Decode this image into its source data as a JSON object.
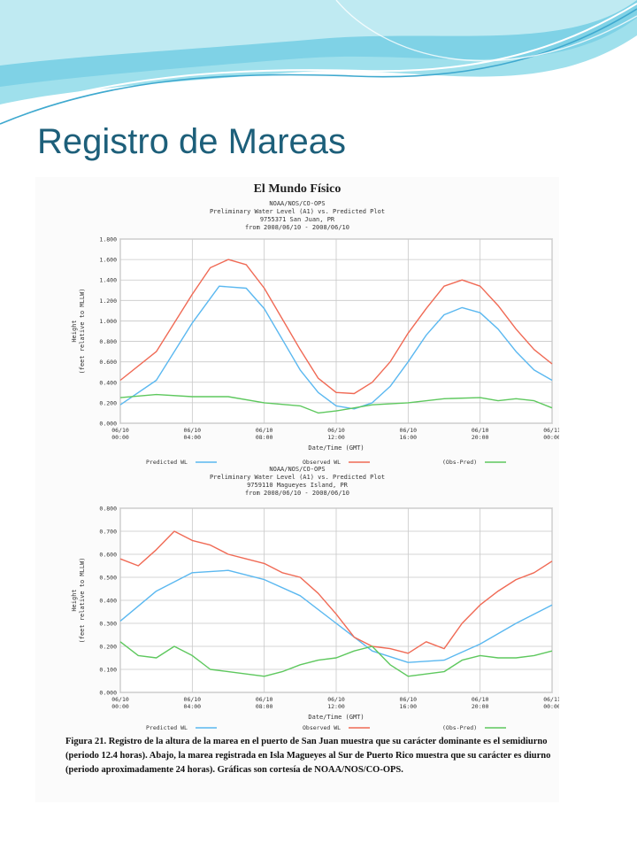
{
  "slide": {
    "title": "Registro de Mareas",
    "figure_heading": "El Mundo Físico",
    "caption": "Figura 21. Registro de la altura de la marea en el puerto de San Juan muestra que su carácter dominante es el semidiurno (periodo 12.4 horas). Abajo, la marea registrada en Isla Magueyes al Sur de Puerto Rico muestra que su carácter es diurno (periodo aproximadamente 24 horas). Gráficas son cortesía de NOAA/NOS/CO-OPS."
  },
  "colors": {
    "title": "#1d5f7a",
    "wave_light": "#9fe0ec",
    "wave_dark": "#3fa9cf",
    "predicted": "#5bb8f0",
    "observed": "#f06a55",
    "diff": "#5ec85e",
    "grid": "#c8c8c8"
  },
  "chart_data": [
    {
      "type": "line",
      "title_lines": [
        "NOAA/NOS/CO-OPS",
        "Preliminary  Water Level (A1) vs. Predicted Plot",
        "9755371 San Juan, PR",
        "from 2008/06/10 - 2008/06/10"
      ],
      "xlabel": "Date/Time (GMT)",
      "ylabel": [
        "Height",
        "(feet relative to MLLW)"
      ],
      "ylim": [
        0,
        1.8
      ],
      "yticks": [
        "0.000",
        "0.200",
        "0.400",
        "0.600",
        "0.800",
        "1.000",
        "1.200",
        "1.400",
        "1.600",
        "1.800"
      ],
      "xlim": [
        0,
        24
      ],
      "xticks": [
        {
          "t": 0,
          "l1": "06/10",
          "l2": "00:00"
        },
        {
          "t": 4,
          "l1": "06/10",
          "l2": "04:00"
        },
        {
          "t": 8,
          "l1": "06/10",
          "l2": "08:00"
        },
        {
          "t": 12,
          "l1": "06/10",
          "l2": "12:00"
        },
        {
          "t": 16,
          "l1": "06/10",
          "l2": "16:00"
        },
        {
          "t": 20,
          "l1": "06/10",
          "l2": "20:00"
        },
        {
          "t": 24,
          "l1": "06/11",
          "l2": "00:00"
        }
      ],
      "legend": [
        "Predicted WL",
        "Observed WL",
        "(Obs-Pred)"
      ],
      "series": [
        {
          "name": "Predicted WL",
          "x": [
            0,
            2,
            4,
            5.5,
            7,
            8,
            9,
            10,
            11,
            12,
            13,
            14,
            15,
            16,
            17,
            18,
            19,
            20,
            21,
            22,
            23,
            24
          ],
          "values": [
            0.18,
            0.42,
            0.98,
            1.34,
            1.32,
            1.12,
            0.82,
            0.52,
            0.3,
            0.17,
            0.14,
            0.2,
            0.36,
            0.6,
            0.86,
            1.06,
            1.13,
            1.08,
            0.92,
            0.7,
            0.52,
            0.42
          ]
        },
        {
          "name": "Observed WL",
          "x": [
            0,
            2,
            4,
            5,
            6,
            7,
            8,
            9,
            10,
            11,
            12,
            13,
            14,
            15,
            16,
            17,
            18,
            19,
            20,
            21,
            22,
            23,
            24
          ],
          "values": [
            0.42,
            0.7,
            1.26,
            1.52,
            1.6,
            1.55,
            1.32,
            1.02,
            0.72,
            0.44,
            0.3,
            0.29,
            0.4,
            0.6,
            0.88,
            1.12,
            1.34,
            1.4,
            1.34,
            1.15,
            0.92,
            0.72,
            0.58
          ]
        },
        {
          "name": "(Obs-Pred)",
          "x": [
            0,
            2,
            4,
            6,
            8,
            10,
            11,
            12,
            13,
            14,
            16,
            18,
            20,
            21,
            22,
            23,
            24
          ],
          "values": [
            0.25,
            0.28,
            0.26,
            0.26,
            0.2,
            0.17,
            0.1,
            0.12,
            0.15,
            0.18,
            0.2,
            0.24,
            0.25,
            0.22,
            0.24,
            0.22,
            0.15
          ]
        }
      ]
    },
    {
      "type": "line",
      "title_lines": [
        "NOAA/NOS/CO-OPS",
        "Preliminary  Water Level (A1) vs. Predicted Plot",
        "9759110 Magueyes Island, PR",
        "from 2008/06/10 - 2008/06/10"
      ],
      "xlabel": "Date/Time (GMT)",
      "ylabel": [
        "Height",
        "(feet relative to MLLW)"
      ],
      "ylim": [
        0,
        0.8
      ],
      "yticks": [
        "0.000",
        "0.100",
        "0.200",
        "0.300",
        "0.400",
        "0.500",
        "0.600",
        "0.700",
        "0.800"
      ],
      "xlim": [
        0,
        24
      ],
      "xticks": [
        {
          "t": 0,
          "l1": "06/10",
          "l2": "00:00"
        },
        {
          "t": 4,
          "l1": "06/10",
          "l2": "04:00"
        },
        {
          "t": 8,
          "l1": "06/10",
          "l2": "08:00"
        },
        {
          "t": 12,
          "l1": "06/10",
          "l2": "12:00"
        },
        {
          "t": 16,
          "l1": "06/10",
          "l2": "16:00"
        },
        {
          "t": 20,
          "l1": "06/10",
          "l2": "20:00"
        },
        {
          "t": 24,
          "l1": "06/11",
          "l2": "00:00"
        }
      ],
      "legend": [
        "Predicted WL",
        "Observed WL",
        "(Obs-Pred)"
      ],
      "series": [
        {
          "name": "Predicted WL",
          "x": [
            0,
            2,
            4,
            6,
            8,
            10,
            12,
            14,
            16,
            18,
            20,
            22,
            24
          ],
          "values": [
            0.31,
            0.44,
            0.52,
            0.53,
            0.49,
            0.42,
            0.3,
            0.18,
            0.13,
            0.14,
            0.21,
            0.3,
            0.38
          ]
        },
        {
          "name": "Observed WL",
          "x": [
            0,
            1,
            2,
            3,
            4,
            5,
            6,
            7,
            8,
            9,
            10,
            11,
            12,
            13,
            14,
            15,
            16,
            17,
            18,
            19,
            20,
            21,
            22,
            23,
            24
          ],
          "values": [
            0.58,
            0.55,
            0.62,
            0.7,
            0.66,
            0.64,
            0.6,
            0.58,
            0.56,
            0.52,
            0.5,
            0.43,
            0.34,
            0.24,
            0.2,
            0.19,
            0.17,
            0.22,
            0.19,
            0.3,
            0.38,
            0.44,
            0.49,
            0.52,
            0.57
          ]
        },
        {
          "name": "(Obs-Pred)",
          "x": [
            0,
            1,
            2,
            3,
            4,
            5,
            6,
            7,
            8,
            9,
            10,
            11,
            12,
            13,
            14,
            15,
            16,
            17,
            18,
            19,
            20,
            21,
            22,
            23,
            24
          ],
          "values": [
            0.22,
            0.16,
            0.15,
            0.2,
            0.16,
            0.1,
            0.09,
            0.08,
            0.07,
            0.09,
            0.12,
            0.14,
            0.15,
            0.18,
            0.2,
            0.12,
            0.07,
            0.08,
            0.09,
            0.14,
            0.16,
            0.15,
            0.15,
            0.16,
            0.18
          ]
        }
      ]
    }
  ]
}
